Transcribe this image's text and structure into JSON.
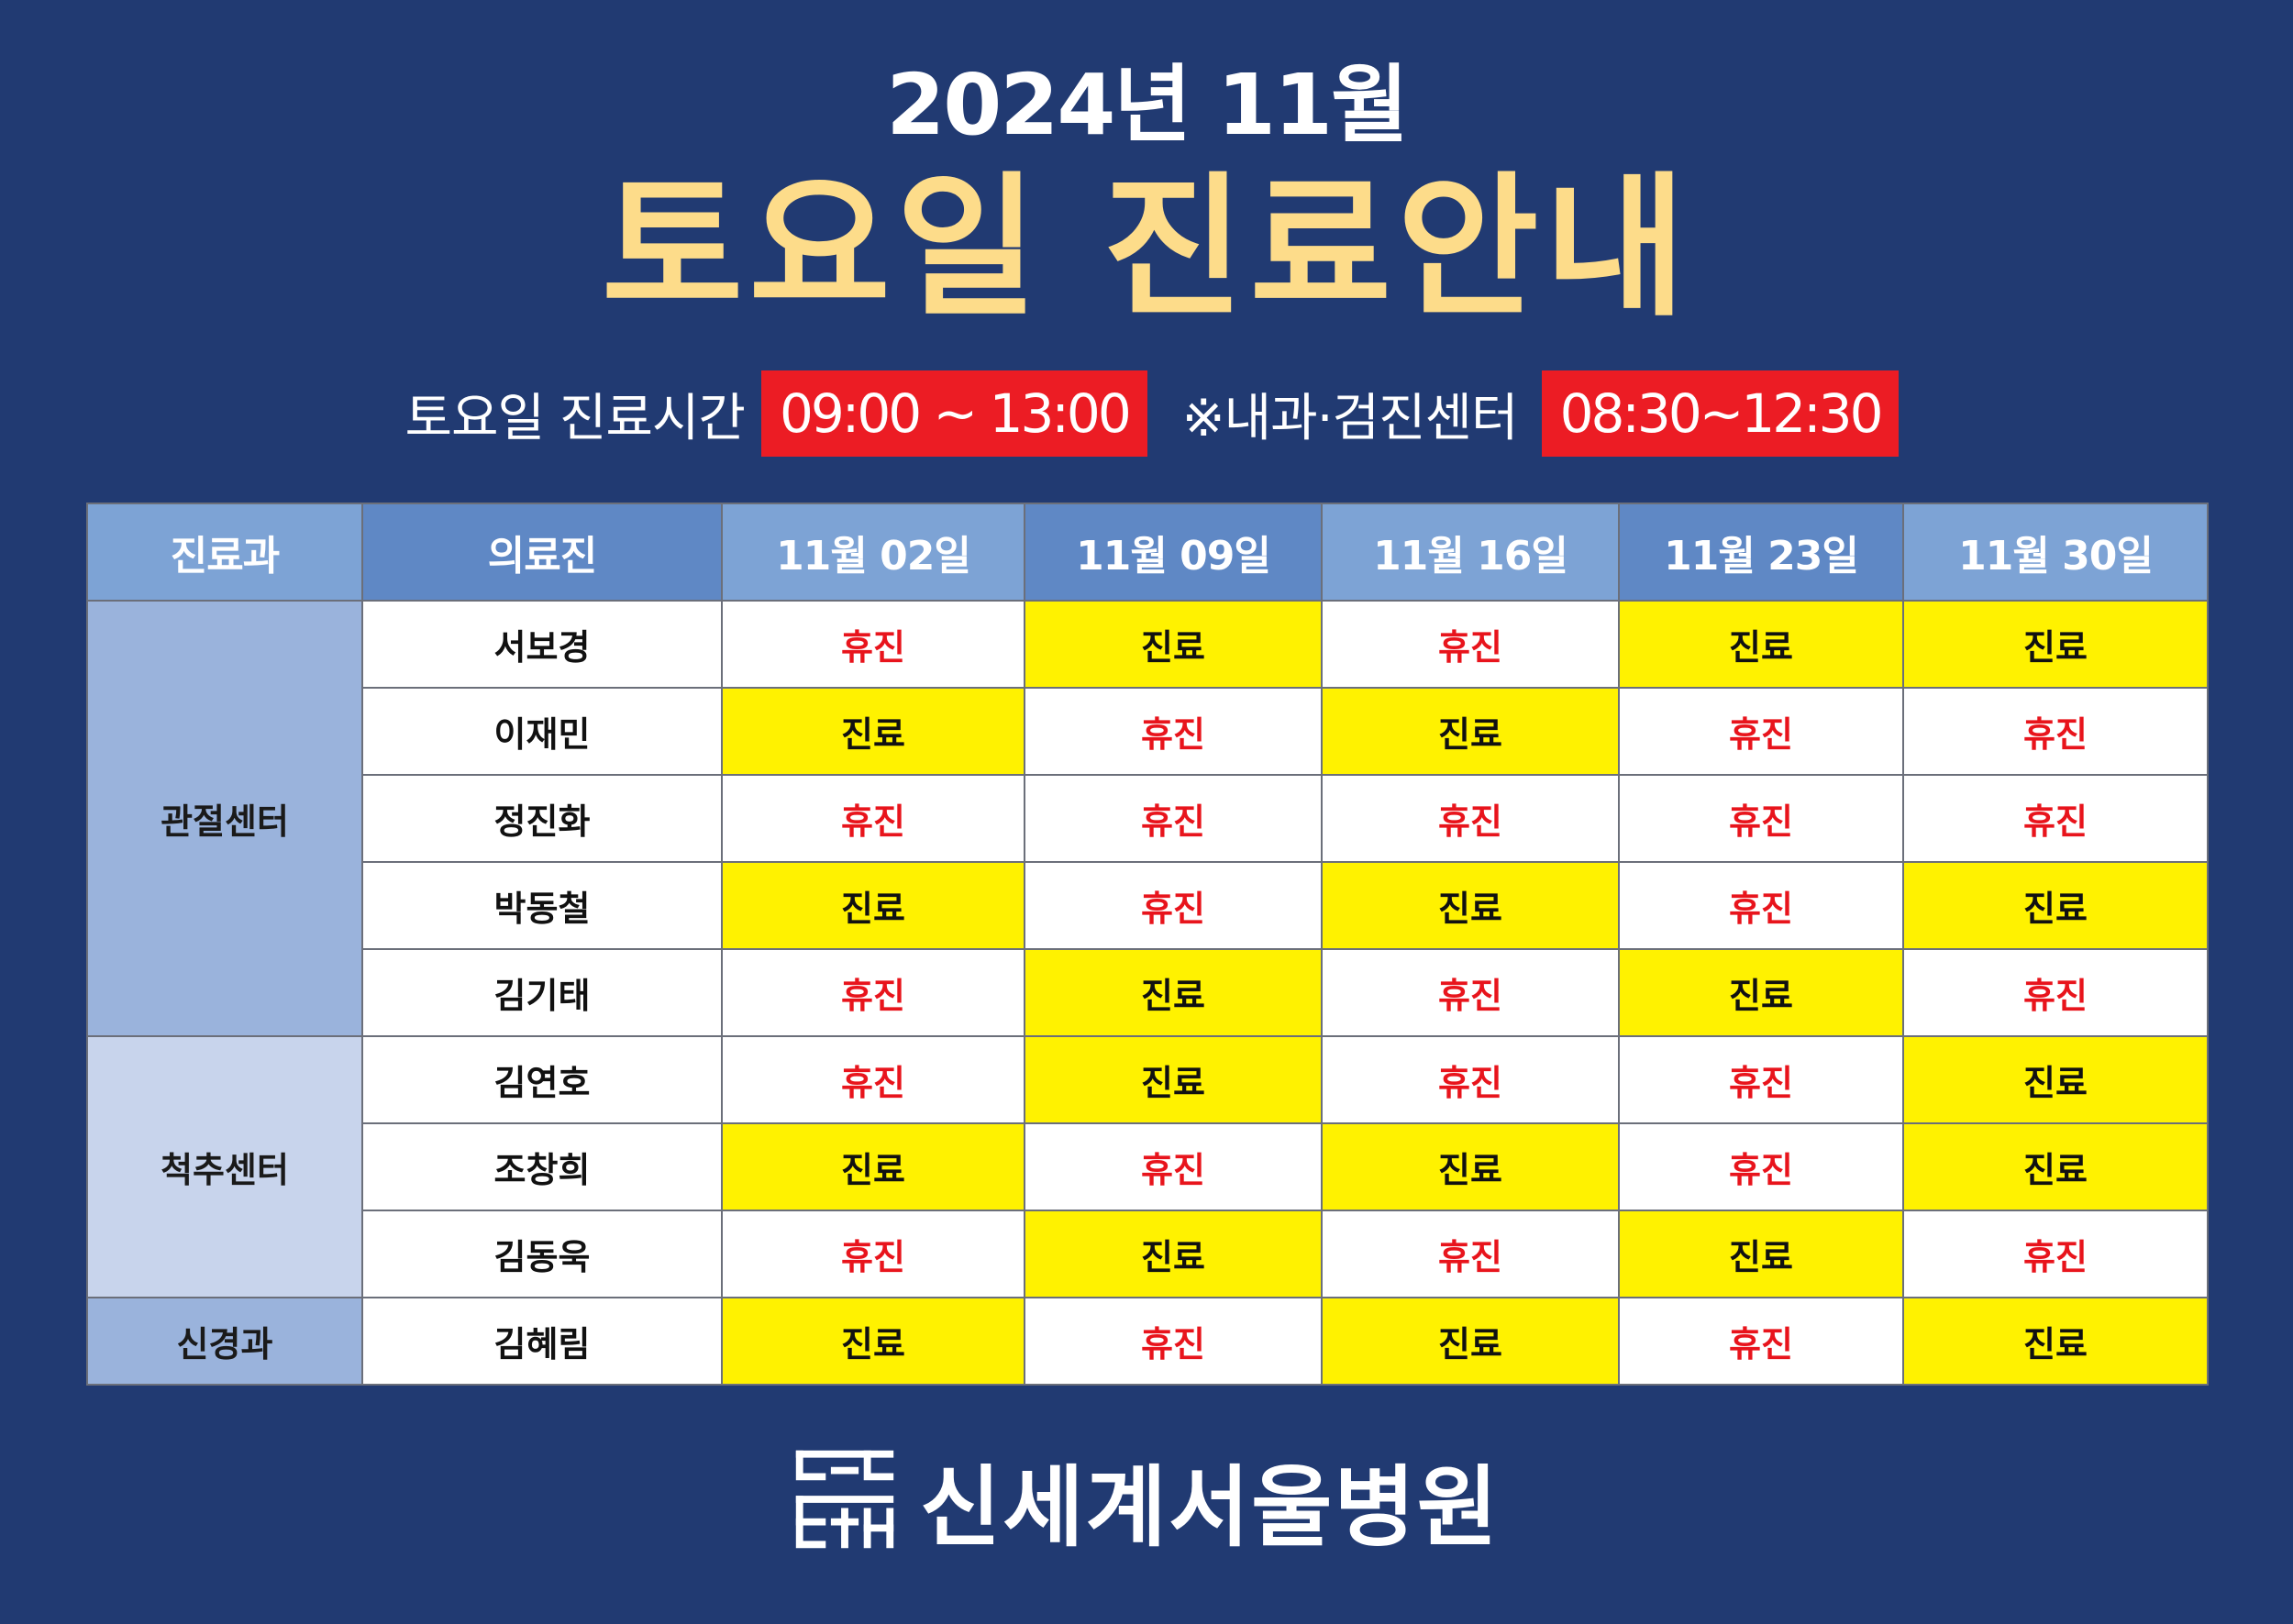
{
  "header": {
    "year_month": "2024년 11월",
    "title": "토요일 진료안내"
  },
  "hours": {
    "label": "토요일 진료시간",
    "time": "09:00 ~ 13:00",
    "note_label": "※내과·검진센터",
    "note_time": "08:30~12:30"
  },
  "table": {
    "headers": [
      "진료과",
      "의료진",
      "11월 02일",
      "11월 09일",
      "11월 16일",
      "11월 23일",
      "11월 30일"
    ],
    "departments": [
      {
        "name": "관절센터",
        "doctors": [
          {
            "name": "서보경",
            "days": [
              "휴진",
              "진료",
              "휴진",
              "진료",
              "진료"
            ]
          },
          {
            "name": "이재민",
            "days": [
              "진료",
              "휴진",
              "진료",
              "휴진",
              "휴진"
            ]
          },
          {
            "name": "정진화",
            "days": [
              "휴진",
              "휴진",
              "휴진",
              "휴진",
              "휴진"
            ]
          },
          {
            "name": "박동철",
            "days": [
              "진료",
              "휴진",
              "진료",
              "휴진",
              "진료"
            ]
          },
          {
            "name": "김기태",
            "days": [
              "휴진",
              "진료",
              "휴진",
              "진료",
              "휴진"
            ]
          }
        ]
      },
      {
        "name": "척추센터",
        "doctors": [
          {
            "name": "김연호",
            "days": [
              "휴진",
              "진료",
              "휴진",
              "휴진",
              "진료"
            ]
          },
          {
            "name": "조창희",
            "days": [
              "진료",
              "휴진",
              "진료",
              "휴진",
              "진료"
            ]
          },
          {
            "name": "김동욱",
            "days": [
              "휴진",
              "진료",
              "휴진",
              "진료",
              "휴진"
            ]
          }
        ]
      },
      {
        "name": "신경과",
        "doctors": [
          {
            "name": "김혜림",
            "days": [
              "진료",
              "휴진",
              "진료",
              "휴진",
              "진료"
            ]
          }
        ]
      }
    ]
  },
  "footer": {
    "hospital_name": "신세계서울병원",
    "logo_icon": "hospital-logo-icon"
  },
  "colors": {
    "background": "#213a72",
    "title": "#fddc8a",
    "pill": "#ec1c24",
    "open": "#fff200",
    "closed_text": "#e8141c"
  }
}
